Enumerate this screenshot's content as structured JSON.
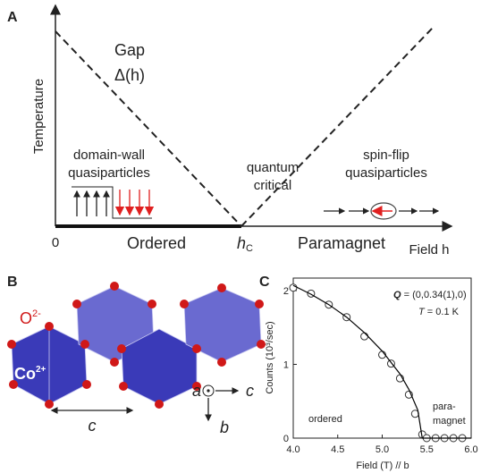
{
  "panel_a": {
    "label": "A",
    "y_label": "Temperature",
    "gap": "Gap",
    "gap_symbol": "Δ(h)",
    "domain_wall": [
      "domain-wall",
      "quasiparticles"
    ],
    "quantum_critical": [
      "quantum",
      "critical"
    ],
    "spin_flip": [
      "spin-flip",
      "quasiparticles"
    ],
    "origin": "0",
    "ordered": "Ordered",
    "hc": {
      "symbol": "h",
      "subscript": "C"
    },
    "paramagnet": "Paramagnet",
    "x_label": "Field h"
  },
  "panel_b": {
    "label": "B",
    "oxygen": {
      "symbol": "O",
      "charge": "2-"
    },
    "cobalt": {
      "symbol": "Co",
      "charge": "2+"
    },
    "chain_length": "c",
    "axes": {
      "a": "a",
      "c": "c",
      "b": "b"
    }
  },
  "chart_data": {
    "type": "scatter",
    "label": "C",
    "x_label": "Field (T) // b",
    "y_label": "Counts (10³/sec)",
    "annotations": {
      "q_symbol": "Q",
      "q_value": "= (0,0.34(1),0)",
      "t_symbol": "T",
      "t_value": "= 0.1 K",
      "ordered": "ordered",
      "para": [
        "para-",
        "magnet"
      ]
    },
    "xlim": [
      4.0,
      6.0
    ],
    "ylim": [
      0,
      2.17
    ],
    "xticks": [
      {
        "value": 4,
        "label": "4.0"
      },
      {
        "value": 4.5,
        "label": "4.5"
      },
      {
        "value": 5,
        "label": "5.0"
      },
      {
        "value": 5.5,
        "label": "5.5"
      },
      {
        "value": 6,
        "label": "6.0"
      }
    ],
    "yticks": [
      0,
      1,
      2
    ],
    "series": [
      {
        "style": "markers",
        "color": "#333333",
        "x": [
          4.0,
          4.2,
          4.4,
          4.6,
          4.8,
          5.0,
          5.1,
          5.2,
          5.3,
          5.37,
          5.45,
          5.5,
          5.6,
          5.7,
          5.8,
          5.9
        ],
        "values": [
          2.04,
          1.96,
          1.81,
          1.64,
          1.38,
          1.13,
          1.01,
          0.81,
          0.59,
          0.33,
          0.05,
          0,
          0,
          0,
          0,
          0
        ]
      },
      {
        "style": "line",
        "color": "#000000",
        "x": [
          4.0,
          4.2,
          4.4,
          4.6,
          4.8,
          5.0,
          5.2,
          5.3,
          5.4,
          5.45,
          5.5,
          6.0
        ],
        "values": [
          2.07,
          1.95,
          1.81,
          1.64,
          1.43,
          1.18,
          0.87,
          0.66,
          0.38,
          0,
          0,
          0
        ]
      }
    ]
  }
}
